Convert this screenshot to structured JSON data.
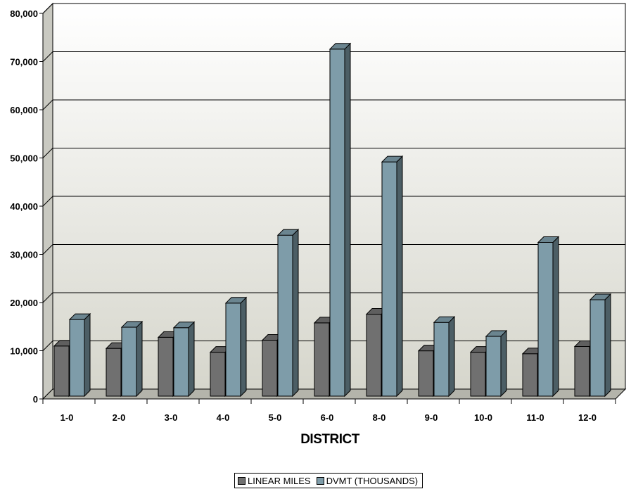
{
  "chart_data": {
    "type": "bar",
    "style": "3d-clustered-column",
    "title": "",
    "xlabel": "DISTRICT",
    "ylabel": "",
    "categories": [
      "1-0",
      "2-0",
      "3-0",
      "4-0",
      "5-0",
      "6-0",
      "8-0",
      "9-0",
      "10-0",
      "11-0",
      "12-0"
    ],
    "series": [
      {
        "name": "LINEAR MILES",
        "color": "#707070",
        "values": [
          10400,
          9900,
          12200,
          9100,
          11600,
          15200,
          17000,
          9400,
          9100,
          8800,
          10300
        ]
      },
      {
        "name": "DVMT (THOUSANDS)",
        "color": "#7e9ca9",
        "values": [
          15900,
          14300,
          14200,
          19300,
          33400,
          72000,
          48600,
          15300,
          12400,
          31900,
          20000
        ]
      }
    ],
    "ylim": [
      0,
      80000
    ],
    "yticks": [
      0,
      10000,
      20000,
      30000,
      40000,
      50000,
      60000,
      70000,
      80000
    ],
    "ytick_labels": [
      "0",
      "10,000",
      "20,000",
      "30,000",
      "40,000",
      "50,000",
      "60,000",
      "70,000",
      "80,000"
    ],
    "grid": true,
    "legend_position": "bottom"
  }
}
